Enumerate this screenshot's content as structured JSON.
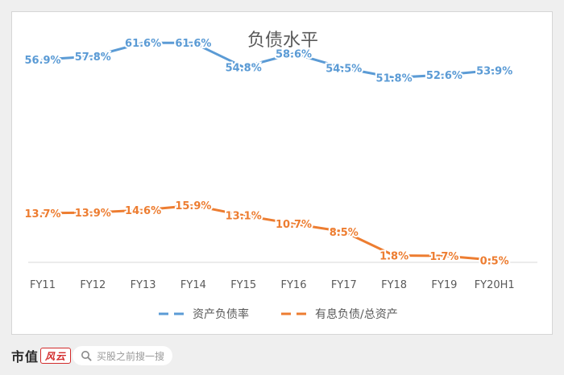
{
  "chart_data": {
    "type": "line",
    "title": "负债水平",
    "categories": [
      "FY11",
      "FY12",
      "FY13",
      "FY14",
      "FY15",
      "FY16",
      "FY17",
      "FY18",
      "FY19",
      "FY20H1"
    ],
    "series": [
      {
        "name": "资产负债率",
        "color": "#5b9bd5",
        "values": [
          56.9,
          57.8,
          61.6,
          61.6,
          54.8,
          58.6,
          54.5,
          51.8,
          52.6,
          53.9
        ],
        "labels": [
          "56.9%",
          "57.8%",
          "61.6%",
          "61.6%",
          "54.8%",
          "58.6%",
          "54.5%",
          "51.8%",
          "52.6%",
          "53.9%"
        ]
      },
      {
        "name": "有息负债/总资产",
        "color": "#ed7d31",
        "values": [
          13.7,
          13.9,
          14.6,
          15.9,
          13.1,
          10.7,
          8.5,
          1.8,
          1.7,
          0.5
        ],
        "labels": [
          "13.7%",
          "13.9%",
          "14.6%",
          "15.9%",
          "13.1%",
          "10.7%",
          "8.5%",
          "1.8%",
          "1.7%",
          "0.5%"
        ]
      }
    ],
    "xlabel": "",
    "ylabel": "",
    "ylim": [
      0,
      70
    ],
    "grid": false,
    "legend_position": "bottom"
  },
  "footer": {
    "brand_text": "市值",
    "brand_mark": "风云",
    "search_placeholder": "买股之前搜一搜",
    "search_icon": "search-icon"
  }
}
